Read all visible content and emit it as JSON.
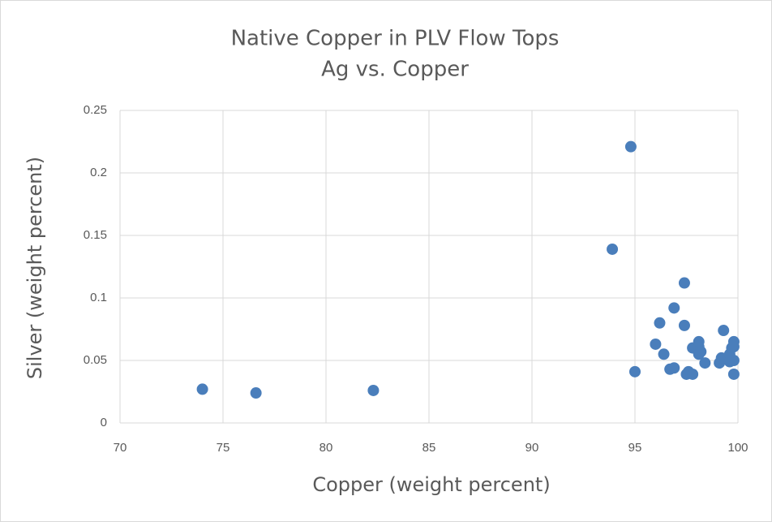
{
  "chart_data": {
    "type": "scatter",
    "title": "Native Copper in PLV Flow Tops",
    "subtitle": "Ag vs. Copper",
    "x_label": "Copper (weight percent)",
    "y_label": "Silver (weight percent)",
    "color": "#4a7ebb",
    "grid": true,
    "xlim": [
      70,
      100
    ],
    "xticks": [
      70,
      75,
      80,
      85,
      90,
      95,
      100
    ],
    "ylim": [
      0,
      0.25
    ],
    "yticks": [
      0,
      0.05,
      0.1,
      0.15,
      0.2,
      0.25
    ],
    "x": [
      74.0,
      76.6,
      82.3,
      94.8,
      93.9,
      95.0,
      96.0,
      96.2,
      96.4,
      96.7,
      96.9,
      96.9,
      97.4,
      97.4,
      97.5,
      97.6,
      97.8,
      97.8,
      98.1,
      98.1,
      98.1,
      98.2,
      98.4,
      99.3,
      99.1,
      99.2,
      99.5,
      99.6,
      99.7,
      99.8,
      99.8,
      99.8,
      99.8,
      99.6
    ],
    "values": [
      0.027,
      0.024,
      0.026,
      0.221,
      0.139,
      0.041,
      0.063,
      0.08,
      0.055,
      0.043,
      0.044,
      0.092,
      0.112,
      0.078,
      0.039,
      0.041,
      0.039,
      0.06,
      0.061,
      0.065,
      0.055,
      0.057,
      0.048,
      0.074,
      0.048,
      0.052,
      0.051,
      0.055,
      0.06,
      0.065,
      0.061,
      0.05,
      0.039,
      0.049
    ]
  }
}
